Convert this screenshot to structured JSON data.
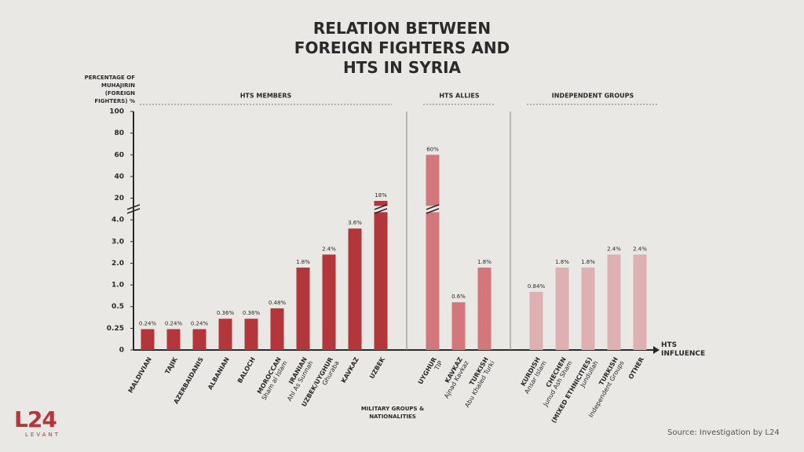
{
  "chart_data": {
    "type": "bar",
    "title": "RELATION BETWEEN FOREIGN FIGHTERS AND HTS IN SYRIA",
    "y_label": "PERCENTAGE OF MUHAJIRIN (FOREIGN FIGHTERS) %",
    "x_label": "MILITARY GROUPS & NATIONALITIES",
    "x_arrow_label": "HTS INFLUENCE",
    "source": "Source: Investigation by L24",
    "ylim": [
      0,
      100
    ],
    "yticks": [
      0,
      0.25,
      0.5,
      {
        "value": 1,
        "label": "1.0"
      },
      {
        "value": 2,
        "label": "2.0"
      },
      {
        "value": 3,
        "label": "3.0"
      },
      {
        "value": 4,
        "label": "4.0"
      },
      20,
      40,
      60,
      80,
      100
    ],
    "groups": [
      {
        "name": "HTS MEMBERS",
        "color": "#b3363b",
        "categories": [
          "MALDIVIAN",
          "TAJIK",
          "AZERBAIDANIS",
          "ALBANIAN",
          "BALOCH",
          "MOROCCAN",
          "IRANIAN",
          "UZBEK/UYGHUR",
          "KAVKAZ",
          "UZBEK"
        ],
        "sublabels": [
          null,
          null,
          null,
          null,
          null,
          "Sham al Islam",
          "Ahl As Sunnah",
          "Ghuraba",
          null,
          null
        ],
        "values": [
          0.24,
          0.24,
          0.24,
          0.36,
          0.36,
          0.48,
          1.8,
          2.4,
          3.6,
          18
        ],
        "value_labels": [
          "0.24%",
          "0.24%",
          "0.24%",
          "0.36%",
          "0.36%",
          "0.48%",
          "1.8%",
          "2.4%",
          "3.6%",
          "18%"
        ]
      },
      {
        "name": "HTS ALLIES",
        "color": "#d4777a",
        "categories": [
          "UYGHUR",
          "KAVKAZ",
          "TURKISH"
        ],
        "sublabels": [
          "TIP",
          "Ajnad Kavkaz",
          "Abu Khaled Turki"
        ],
        "values": [
          60,
          0.6,
          1.8
        ],
        "value_labels": [
          "60%",
          "0.6%",
          "1.8%"
        ]
      },
      {
        "name": "INDEPENDENT GROUPS",
        "color": "#deb0b1",
        "categories": [
          "KURDISH",
          "CHECHEN",
          "(MIXED ETHNICITIES)",
          "TURKISH",
          "OTHER"
        ],
        "sublabels": [
          "Ansar Islam",
          "Junud Ash Sham",
          "Jundullah",
          "Independent Groups",
          null
        ],
        "values": [
          0.84,
          1.8,
          1.8,
          2.4,
          2.4
        ],
        "value_labels": [
          "0.84%",
          "1.8%",
          "1.8%",
          "2.4%",
          "2.4%"
        ]
      }
    ]
  },
  "logo": {
    "mark": "L24",
    "text": "LEVANT"
  }
}
